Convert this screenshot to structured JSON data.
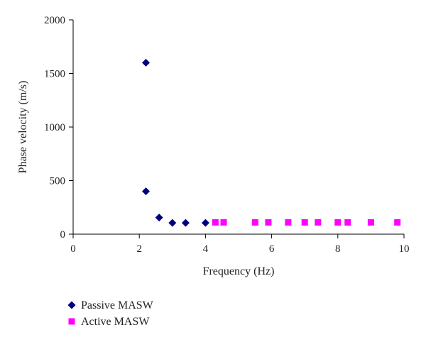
{
  "chart_data": {
    "type": "scatter",
    "xlabel": "Frequency (Hz)",
    "ylabel": "Phase velocity (m/s)",
    "xlim": [
      0,
      10
    ],
    "ylim": [
      0,
      2000
    ],
    "x_ticks": [
      0,
      2,
      4,
      6,
      8,
      10
    ],
    "y_ticks": [
      0,
      500,
      1000,
      1500,
      2000
    ],
    "x_tick_labels": [
      "0",
      "2",
      "4",
      "6",
      "8",
      "10"
    ],
    "y_tick_labels": [
      "0",
      "500",
      "1000",
      "1500",
      "2000"
    ],
    "grid": false,
    "legend_position": "bottom-left",
    "series": [
      {
        "name": "Passive MASW",
        "marker": "diamond",
        "color": "#000080",
        "points": [
          {
            "x": 2.2,
            "y": 1600
          },
          {
            "x": 2.2,
            "y": 400
          },
          {
            "x": 2.6,
            "y": 155
          },
          {
            "x": 3.0,
            "y": 105
          },
          {
            "x": 3.4,
            "y": 105
          },
          {
            "x": 4.0,
            "y": 105
          }
        ]
      },
      {
        "name": "Active MASW",
        "marker": "square",
        "color": "#ff00ff",
        "points": [
          {
            "x": 4.3,
            "y": 110
          },
          {
            "x": 4.55,
            "y": 110
          },
          {
            "x": 5.5,
            "y": 110
          },
          {
            "x": 5.9,
            "y": 110
          },
          {
            "x": 6.5,
            "y": 110
          },
          {
            "x": 7.0,
            "y": 110
          },
          {
            "x": 7.4,
            "y": 110
          },
          {
            "x": 8.0,
            "y": 110
          },
          {
            "x": 8.3,
            "y": 110
          },
          {
            "x": 9.0,
            "y": 110
          },
          {
            "x": 9.8,
            "y": 110
          }
        ]
      }
    ]
  }
}
